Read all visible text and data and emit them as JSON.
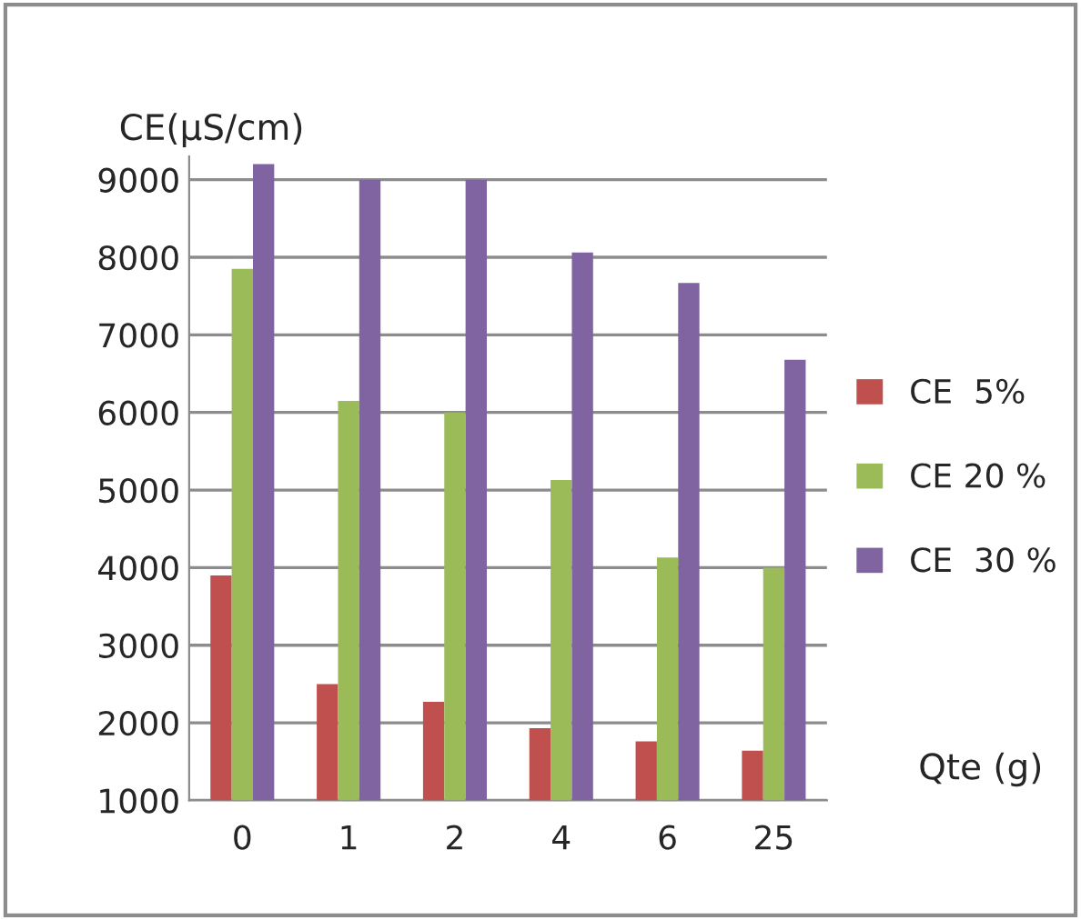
{
  "chart_data": {
    "type": "bar",
    "ylabel": "CE(µS/cm)",
    "xlabel": "Qte (g)",
    "categories": [
      "0",
      "1",
      "2",
      "4",
      "6",
      "25"
    ],
    "series": [
      {
        "name": "CE  5%",
        "color": "#c0504d",
        "values": [
          3900,
          2500,
          2270,
          1930,
          1760,
          1640
        ]
      },
      {
        "name": "CE 20 %",
        "color": "#9bbb59",
        "values": [
          7850,
          6150,
          6000,
          5130,
          4130,
          4000
        ]
      },
      {
        "name": "CE  30 %",
        "color": "#8064a2",
        "values": [
          9200,
          9000,
          9000,
          8060,
          7670,
          6680
        ]
      }
    ],
    "ylim": [
      1000,
      9300
    ],
    "yticks": [
      1000,
      2000,
      3000,
      4000,
      5000,
      6000,
      7000,
      8000,
      9000
    ],
    "grid": "y",
    "legend": "right"
  }
}
